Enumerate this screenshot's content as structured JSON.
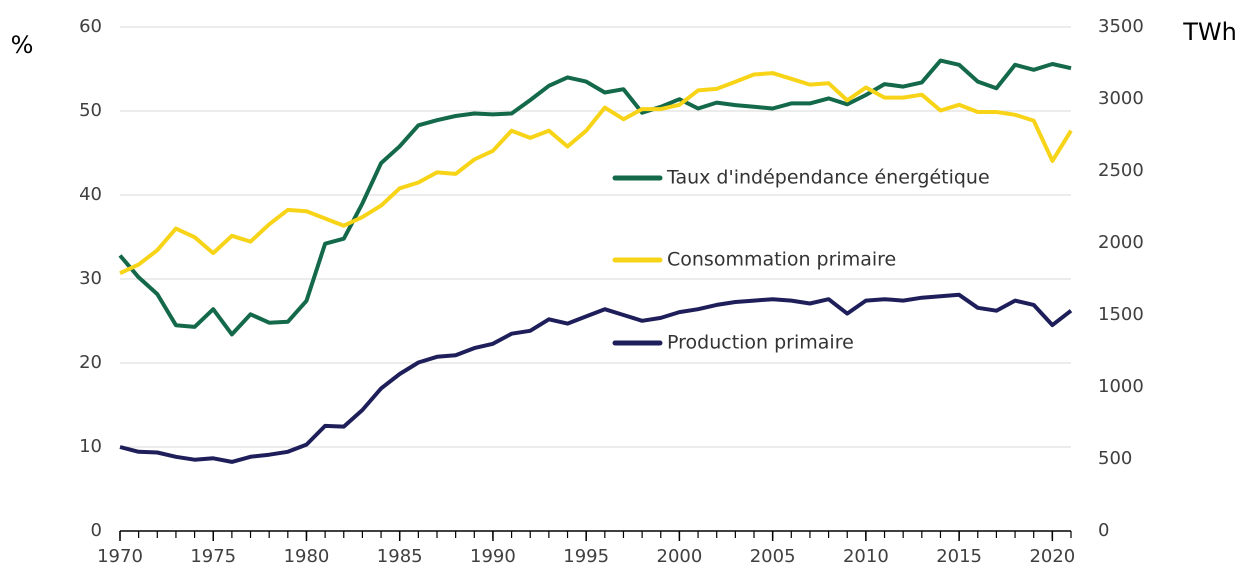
{
  "chart_data": {
    "type": "line",
    "y_label": "%",
    "y2_label": "TWh",
    "x": [
      1970,
      1971,
      1972,
      1973,
      1974,
      1975,
      1976,
      1977,
      1978,
      1979,
      1980,
      1981,
      1982,
      1983,
      1984,
      1985,
      1986,
      1987,
      1988,
      1989,
      1990,
      1991,
      1992,
      1993,
      1994,
      1995,
      1996,
      1997,
      1998,
      1999,
      2000,
      2001,
      2002,
      2003,
      2004,
      2005,
      2006,
      2007,
      2008,
      2009,
      2010,
      2011,
      2012,
      2013,
      2014,
      2015,
      2016,
      2017,
      2018,
      2019,
      2020,
      2021
    ],
    "xlim": [
      1970,
      2021
    ],
    "xticks": [
      1970,
      1975,
      1980,
      1985,
      1990,
      1995,
      2000,
      2005,
      2010,
      2015,
      2020
    ],
    "ylim": [
      0,
      60
    ],
    "yticks": [
      0,
      10,
      20,
      30,
      40,
      50,
      60
    ],
    "y2lim": [
      0,
      3500
    ],
    "y2ticks": [
      0,
      500,
      1000,
      1500,
      2000,
      2500,
      3000,
      3500
    ],
    "grid": true,
    "series": [
      {
        "name": "Taux d'indépendance énergétique",
        "color": "#13694a",
        "axis": "y",
        "values": [
          32.8,
          30.2,
          28.2,
          24.5,
          24.3,
          26.4,
          23.4,
          25.8,
          24.8,
          24.9,
          27.4,
          34.2,
          34.8,
          39,
          43.8,
          45.8,
          48.3,
          48.9,
          49.4,
          49.7,
          49.6,
          49.7,
          51.3,
          53,
          54,
          53.5,
          52.2,
          52.6,
          49.8,
          50.5,
          51.4,
          50.3,
          51,
          50.7,
          50.5,
          50.3,
          50.9,
          50.9,
          51.5,
          50.8,
          51.9,
          53.2,
          52.9,
          53.4,
          56,
          55.5,
          53.5,
          52.7,
          55.5,
          54.9,
          55.6,
          55.1
        ]
      },
      {
        "name": "Consommation primaire",
        "color": "#f7d417",
        "axis": "y2",
        "values": [
          1790,
          1850,
          1950,
          2100,
          2040,
          1930,
          2050,
          2010,
          2130,
          2230,
          2220,
          2170,
          2120,
          2180,
          2260,
          2380,
          2420,
          2490,
          2480,
          2580,
          2640,
          2780,
          2730,
          2780,
          2670,
          2780,
          2940,
          2860,
          2930,
          2930,
          2960,
          3060,
          3070,
          3120,
          3170,
          3180,
          3140,
          3100,
          3110,
          2990,
          3080,
          3010,
          3010,
          3030,
          2920,
          2960,
          2910,
          2910,
          2890,
          2850,
          2570,
          2780
        ]
      },
      {
        "name": "Production primaire",
        "color": "#1e1f5a",
        "axis": "y2",
        "values": [
          583,
          550,
          545,
          515,
          495,
          505,
          480,
          515,
          530,
          550,
          600,
          730,
          725,
          840,
          990,
          1090,
          1170,
          1210,
          1220,
          1270,
          1300,
          1370,
          1390,
          1470,
          1440,
          1490,
          1540,
          1500,
          1460,
          1480,
          1520,
          1540,
          1570,
          1590,
          1600,
          1610,
          1600,
          1580,
          1610,
          1510,
          1600,
          1610,
          1600,
          1620,
          1630,
          1640,
          1550,
          1530,
          1600,
          1570,
          1430,
          1530
        ]
      }
    ]
  }
}
